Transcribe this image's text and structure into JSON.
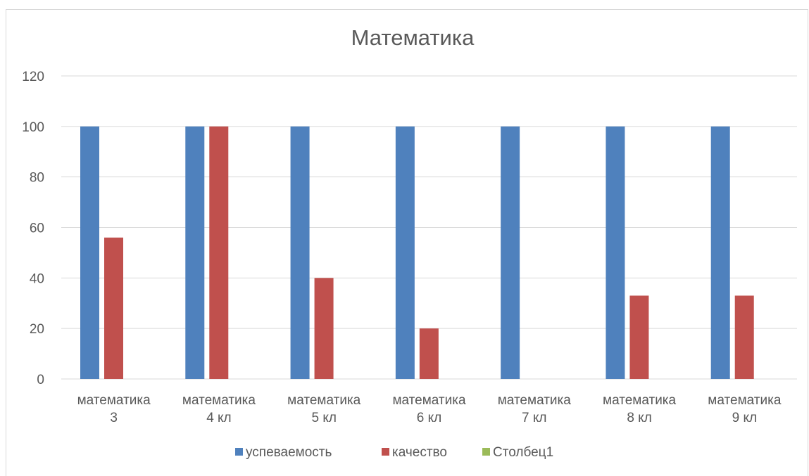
{
  "chart_data": {
    "type": "bar",
    "title": "Математика",
    "categories": [
      [
        "математика",
        "3"
      ],
      [
        "математика",
        "4 кл"
      ],
      [
        "математика",
        "5 кл"
      ],
      [
        "математика",
        "6 кл"
      ],
      [
        "математика",
        "7 кл"
      ],
      [
        "математика",
        "8 кл"
      ],
      [
        "математика",
        "9 кл"
      ]
    ],
    "series": [
      {
        "name": "успеваемость",
        "color": "#4f81bd",
        "values": [
          100,
          100,
          100,
          100,
          100,
          100,
          100
        ]
      },
      {
        "name": "качество",
        "color": "#c0504d",
        "values": [
          56,
          100,
          40,
          20,
          0,
          33,
          33
        ]
      },
      {
        "name": "Столбец1",
        "color": "#9bbb59",
        "values": [
          null,
          null,
          null,
          null,
          null,
          null,
          null
        ]
      }
    ],
    "ylim": [
      0,
      120
    ],
    "yticks": [
      0,
      20,
      40,
      60,
      80,
      100,
      120
    ],
    "grid": true,
    "legend": "bottom",
    "xlabel": "",
    "ylabel": ""
  }
}
